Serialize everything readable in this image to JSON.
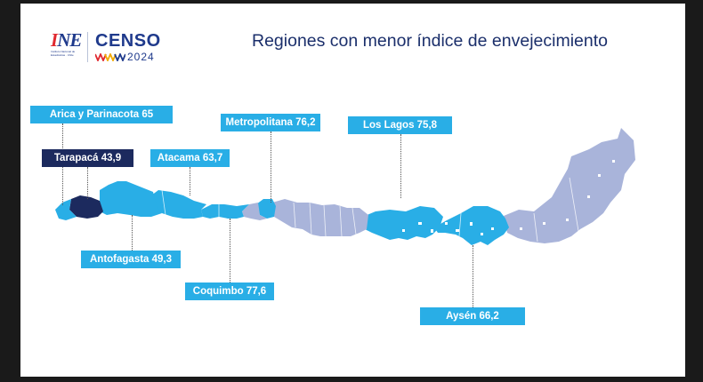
{
  "title": "Regiones con menor índice de envejecimiento",
  "logos": {
    "ine_mark_text": "INE",
    "ine_subtext": "Instituto Nacional de Estadísticas · Chile",
    "censo_text": "CENSO",
    "censo_year": "2024"
  },
  "regions": [
    {
      "name": "Arica y Parinacota",
      "value": "65",
      "label": "Arica y Parinacota 65"
    },
    {
      "name": "Tarapacá",
      "value": "43,9",
      "label": "Tarapacá 43,9"
    },
    {
      "name": "Antofagasta",
      "value": "49,3",
      "label": "Antofagasta 49,3"
    },
    {
      "name": "Atacama",
      "value": "63,7",
      "label": "Atacama 63,7"
    },
    {
      "name": "Coquimbo",
      "value": "77,6",
      "label": "Coquimbo 77,6"
    },
    {
      "name": "Metropolitana",
      "value": "76,2",
      "label": "Metropolitana 76,2"
    },
    {
      "name": "Los Lagos",
      "value": "75,8",
      "label": "Los Lagos 75,8"
    },
    {
      "name": "Aysén",
      "value": "66,2",
      "label": "Aysén 66,2"
    }
  ],
  "colors": {
    "title": "#1b2f6b",
    "highlight_region": "#29aee6",
    "lowest_region": "#1c2a5e",
    "other_regions": "#a9b4da",
    "background": "#ffffff",
    "frame": "#1a1a1a"
  }
}
